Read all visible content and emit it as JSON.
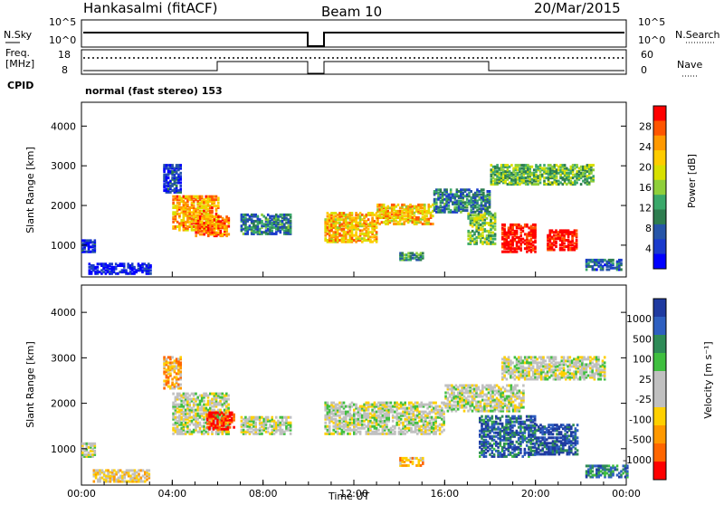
{
  "header": {
    "station": "Hankasalmi (fitACF)",
    "beam": "Beam 10",
    "date": "20/Mar/2015"
  },
  "status_panels": {
    "nsky": {
      "left_label": "N.Sky",
      "right_label": "N.Search",
      "left_ticks": [
        "10^5",
        "10^0"
      ],
      "right_ticks": [
        "10^5",
        "10^0"
      ]
    },
    "freq": {
      "left_label_1": "Freq.",
      "left_label_2": "[MHz]",
      "right_label": "Nave",
      "left_ticks": [
        "18",
        "8"
      ],
      "right_ticks": [
        "60",
        "0"
      ]
    },
    "cpid": {
      "label": "CPID",
      "text": "normal (fast stereo) 153"
    }
  },
  "chart_data": [
    {
      "type": "heatmap",
      "name": "power-panel",
      "ylabel": "Slant Range [km]",
      "xlabel": "",
      "ylim": [
        200,
        4600
      ],
      "y_ticks": [
        "1000",
        "2000",
        "3000",
        "4000"
      ],
      "x_ticks": [
        "00:00",
        "04:00",
        "08:00",
        "12:00",
        "16:00",
        "20:00",
        "00:00"
      ],
      "xlim_hours": [
        0,
        24
      ],
      "data_gap_hours": [
        9.5,
        10.6
      ],
      "colorbar": {
        "label": "Power [dB]",
        "tick_labels": [
          "28",
          "24",
          "20",
          "16",
          "12",
          "8",
          "4"
        ],
        "colors": [
          "#ff0000",
          "#ff5500",
          "#ff9900",
          "#ffcc00",
          "#d8e000",
          "#8fcf3a",
          "#3aa86a",
          "#2e7d4f",
          "#2655a8",
          "#1a3acc",
          "#0000ff"
        ]
      },
      "regions": [
        {
          "t0": 0,
          "t1": 0.6,
          "r0": 800,
          "r1": 1100,
          "v": 0.1
        },
        {
          "t0": 0.3,
          "t1": 3.0,
          "r0": 250,
          "r1": 500,
          "v": 0.05
        },
        {
          "t0": 3.6,
          "t1": 4.4,
          "r0": 2300,
          "r1": 3000,
          "v": 0.15
        },
        {
          "t0": 4.0,
          "t1": 6.0,
          "r0": 1350,
          "r1": 2200,
          "v": 0.75
        },
        {
          "t0": 5.0,
          "t1": 6.5,
          "r0": 1200,
          "r1": 1700,
          "v": 0.8
        },
        {
          "t0": 7.0,
          "t1": 9.2,
          "r0": 1250,
          "r1": 1750,
          "v": 0.3
        },
        {
          "t0": 10.7,
          "t1": 13.0,
          "r0": 1050,
          "r1": 1800,
          "v": 0.7
        },
        {
          "t0": 13.0,
          "t1": 15.5,
          "r0": 1500,
          "r1": 2000,
          "v": 0.7
        },
        {
          "t0": 15.5,
          "t1": 18.0,
          "r0": 1800,
          "r1": 2400,
          "v": 0.3
        },
        {
          "t0": 18.0,
          "t1": 22.5,
          "r0": 2500,
          "r1": 3000,
          "v": 0.45
        },
        {
          "t0": 18.5,
          "t1": 20.0,
          "r0": 800,
          "r1": 1500,
          "v": 1.0
        },
        {
          "t0": 20.5,
          "t1": 21.8,
          "r0": 850,
          "r1": 1350,
          "v": 1.0
        },
        {
          "t0": 17.0,
          "t1": 18.2,
          "r0": 1000,
          "r1": 1800,
          "v": 0.5
        },
        {
          "t0": 14.0,
          "t1": 15.0,
          "r0": 600,
          "r1": 800,
          "v": 0.35
        },
        {
          "t0": 22.2,
          "t1": 23.8,
          "r0": 350,
          "r1": 600,
          "v": 0.25
        }
      ]
    },
    {
      "type": "heatmap",
      "name": "velocity-panel",
      "ylabel": "Slant Range [km]",
      "xlabel": "Time UT",
      "ylim": [
        200,
        4600
      ],
      "y_ticks": [
        "1000",
        "2000",
        "3000",
        "4000"
      ],
      "x_ticks": [
        "00:00",
        "04:00",
        "08:00",
        "12:00",
        "16:00",
        "20:00",
        "00:00"
      ],
      "xlim_hours": [
        0,
        24
      ],
      "data_gap_hours": [
        9.5,
        10.6
      ],
      "colorbar": {
        "label": "Velocity [m s⁻¹]",
        "tick_labels": [
          "1000",
          "500",
          "100",
          "25",
          "-25",
          "-100",
          "-500",
          "-1000"
        ],
        "colors": [
          "#1f3aa0",
          "#2e5fc0",
          "#2e8b57",
          "#3fbf3f",
          "#c0c0c0",
          "#c0c0c0",
          "#ffd000",
          "#ff9900",
          "#ff6600",
          "#ff0000"
        ]
      },
      "regions": [
        {
          "t0": 0,
          "t1": 0.6,
          "r0": 800,
          "r1": 1100,
          "v": 0.5
        },
        {
          "t0": 0.5,
          "t1": 3.0,
          "r0": 250,
          "r1": 500,
          "v": 0.6
        },
        {
          "t0": 3.6,
          "t1": 4.4,
          "r0": 2300,
          "r1": 3000,
          "v": 0.7
        },
        {
          "t0": 4.0,
          "t1": 6.5,
          "r0": 1300,
          "r1": 2200,
          "v": 0.5
        },
        {
          "t0": 5.5,
          "t1": 6.7,
          "r0": 1400,
          "r1": 1800,
          "v": 0.95
        },
        {
          "t0": 7.0,
          "t1": 9.2,
          "r0": 1300,
          "r1": 1700,
          "v": 0.5
        },
        {
          "t0": 10.7,
          "t1": 16.0,
          "r0": 1300,
          "r1": 2000,
          "v": 0.5
        },
        {
          "t0": 16.0,
          "t1": 19.5,
          "r0": 1800,
          "r1": 2400,
          "v": 0.5
        },
        {
          "t0": 18.5,
          "t1": 23.0,
          "r0": 2500,
          "r1": 3000,
          "v": 0.5
        },
        {
          "t0": 17.5,
          "t1": 20.0,
          "r0": 800,
          "r1": 1700,
          "v": 0.15
        },
        {
          "t0": 20.0,
          "t1": 21.8,
          "r0": 850,
          "r1": 1500,
          "v": 0.1
        },
        {
          "t0": 14.0,
          "t1": 15.0,
          "r0": 600,
          "r1": 800,
          "v": 0.7
        },
        {
          "t0": 22.2,
          "t1": 24.0,
          "r0": 350,
          "r1": 600,
          "v": 0.2
        }
      ]
    }
  ]
}
